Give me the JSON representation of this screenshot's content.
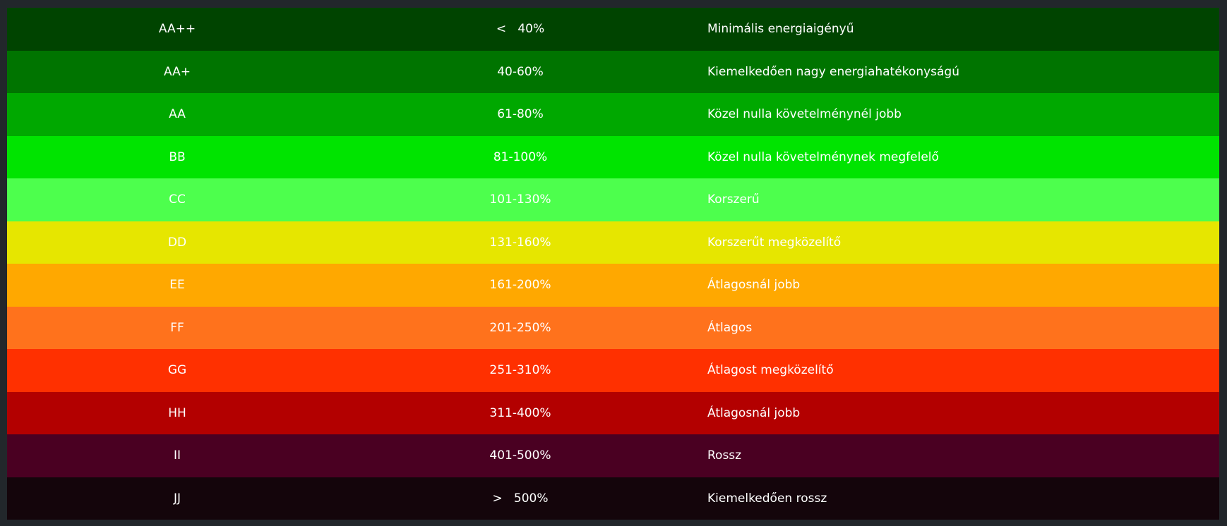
{
  "table": {
    "rows": [
      {
        "class": "AA++",
        "range": "<   40%",
        "description": "Minimális energiaigényű",
        "color": "#004400"
      },
      {
        "class": "AA+",
        "range": "40-60%",
        "description": "Kiemelkedően nagy energiahatékonyságú",
        "color": "#007400"
      },
      {
        "class": "AA",
        "range": "61-80%",
        "description": "Közel nulla követelménynél jobb",
        "color": "#00a800"
      },
      {
        "class": "BB",
        "range": "81-100%",
        "description": "Közel nulla követelménynek megfelelő",
        "color": "#00e400"
      },
      {
        "class": "CC",
        "range": "101-130%",
        "description": "Korszerű",
        "color": "#4dff4d"
      },
      {
        "class": "DD",
        "range": "131-160%",
        "description": "Korszerűt megközelítő",
        "color": "#e6e600"
      },
      {
        "class": "EE",
        "range": "161-200%",
        "description": "Átlagosnál jobb",
        "color": "#ffa800"
      },
      {
        "class": "FF",
        "range": "201-250%",
        "description": "Átlagos",
        "color": "#ff721c"
      },
      {
        "class": "GG",
        "range": "251-310%",
        "description": "Átlagost megközelítő",
        "color": "#ff3000"
      },
      {
        "class": "HH",
        "range": "311-400%",
        "description": "Átlagosnál jobb",
        "color": "#b30000"
      },
      {
        "class": "II",
        "range": "401-500%",
        "description": "Rossz",
        "color": "#4a0022"
      },
      {
        "class": "JJ",
        "range": ">   500%",
        "description": "Kiemelkedően rossz",
        "color": "#14050b"
      }
    ]
  }
}
